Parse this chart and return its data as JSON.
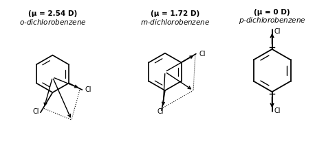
{
  "bg_color": "#ffffff",
  "line_color": "#000000",
  "compounds": [
    {
      "label_italic": "o",
      "label_rest": "-dichlorobenzene",
      "mu_text": "(μ = 2.54 D)"
    },
    {
      "label_italic": "m",
      "label_rest": "-dichlorobenzene",
      "mu_text": "(μ = 1.72 D)"
    },
    {
      "label_italic": "p",
      "label_rest": "-dichlorobenzene",
      "mu_text": "(μ = 0 D)"
    }
  ]
}
